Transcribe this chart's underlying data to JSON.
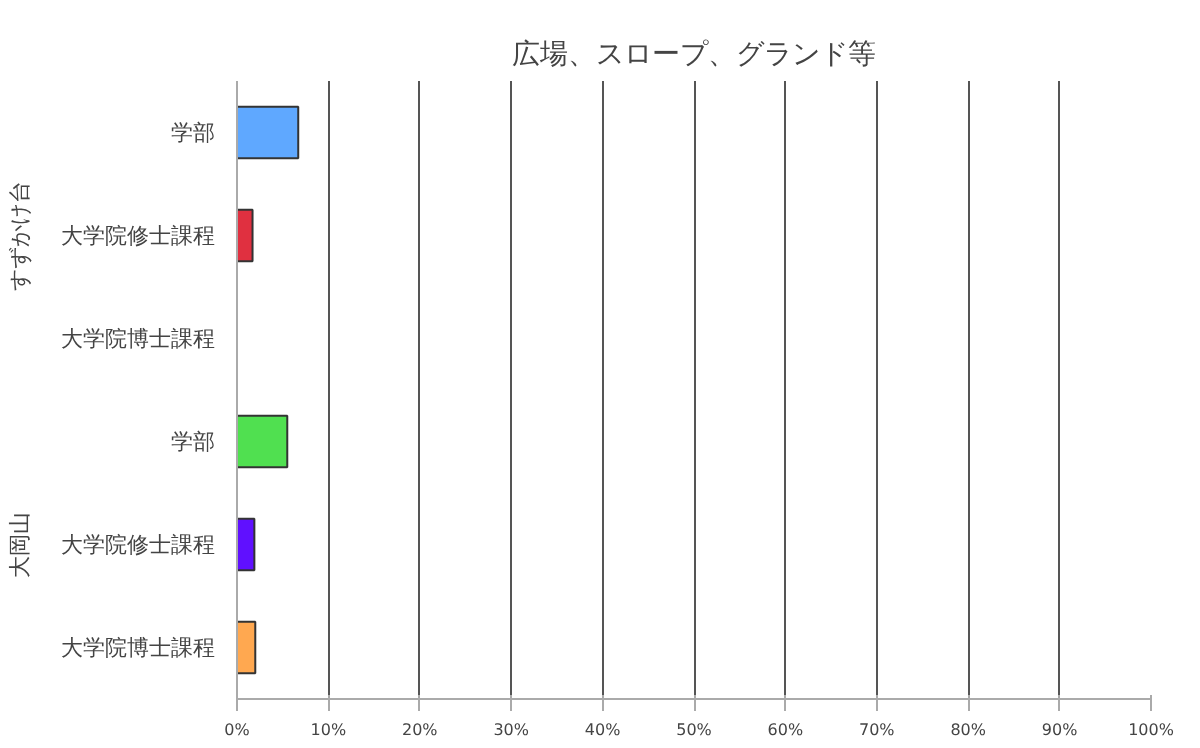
{
  "chart_data": {
    "type": "bar",
    "orientation": "horizontal",
    "title": "広場、スロープ、グランド等",
    "categories": [
      "学部",
      "大学院修士課程",
      "大学院博士課程",
      "学部",
      "大学院修士課程",
      "大学院博士課程"
    ],
    "values": [
      6.7,
      1.7,
      0,
      5.5,
      1.9,
      2.0
    ],
    "colors": [
      "#5fa8ff",
      "#e03040",
      null,
      "#50e050",
      "#6010ff",
      "#ffa850"
    ],
    "annotations": [
      "すずかけ台",
      "大岡山"
    ],
    "xlim": [
      0,
      100
    ],
    "xticks": [
      {
        "value": 0,
        "label": "0%"
      },
      {
        "value": 10,
        "label": "10%"
      },
      {
        "value": 20,
        "label": "20%"
      },
      {
        "value": 30,
        "label": "30%"
      },
      {
        "value": 40,
        "label": "40%"
      },
      {
        "value": 50,
        "label": "50%"
      },
      {
        "value": 60,
        "label": "60%"
      },
      {
        "value": 70,
        "label": "70%"
      },
      {
        "value": 80,
        "label": "80%"
      },
      {
        "value": 90,
        "label": "90%"
      },
      {
        "value": 100,
        "label": "100%"
      }
    ],
    "grid": "x"
  }
}
